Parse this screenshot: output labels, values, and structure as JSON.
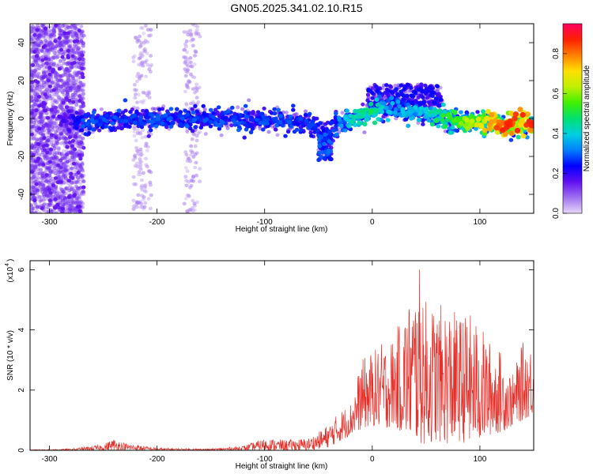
{
  "title": "GN05.2025.341.02.10.R15",
  "chart_data": [
    {
      "type": "heatmap",
      "title": "GN05.2025.341.02.10.R15",
      "xlabel": "Height of straight line (km)",
      "ylabel": "Frequency (Hz)",
      "xlim": [
        -318,
        150
      ],
      "ylim": [
        -50,
        50
      ],
      "x_ticks": [
        -300,
        -200,
        -100,
        0,
        100
      ],
      "y_ticks": [
        -40,
        -20,
        0,
        20,
        40
      ],
      "colorbar": {
        "label": "Normalized spectral amplitude",
        "range": [
          0,
          0.95
        ],
        "ticks": [
          0.0,
          0.2,
          0.4,
          0.6,
          0.8
        ],
        "colormap": [
          "#e6d8f8",
          "#a070f0",
          "#6010f0",
          "#0000ff",
          "#0080ff",
          "#00d0e0",
          "#00e070",
          "#40f000",
          "#c0f000",
          "#ffe000",
          "#ff8000",
          "#ff2000",
          "#ff0060"
        ]
      },
      "ridge_profile": {
        "x": [
          -318,
          -280,
          -270,
          -240,
          -200,
          -150,
          -100,
          -60,
          -45,
          -35,
          -20,
          0,
          10,
          20,
          30,
          45,
          60,
          80,
          100,
          120,
          150
        ],
        "center": [
          -2,
          -2,
          -2,
          -1,
          0,
          0,
          -1,
          -2,
          -8,
          -3,
          0,
          4,
          6,
          5,
          4,
          3,
          1,
          -1,
          -2,
          -3,
          -3
        ],
        "peak_amplitude": [
          0.15,
          0.2,
          0.3,
          0.3,
          0.3,
          0.3,
          0.3,
          0.3,
          0.25,
          0.3,
          0.45,
          0.5,
          0.45,
          0.4,
          0.4,
          0.4,
          0.5,
          0.6,
          0.7,
          0.9,
          0.9
        ]
      }
    },
    {
      "type": "line",
      "xlabel": "Height of straight line (km)",
      "ylabel": "SNR (10 * v/v)",
      "y_multiplier": "(x10",
      "y_multiplier_exp": "4",
      "xlim": [
        -318,
        150
      ],
      "ylim": [
        0,
        6.3
      ],
      "x_ticks": [
        -300,
        -200,
        -100,
        0,
        100
      ],
      "y_ticks": [
        0,
        2,
        4,
        6
      ],
      "color": "#e8302a",
      "envelope": {
        "x": [
          -318,
          -280,
          -250,
          -240,
          -230,
          -200,
          -150,
          -120,
          -100,
          -80,
          -60,
          -50,
          -40,
          -30,
          -20,
          -10,
          0,
          10,
          20,
          30,
          40,
          45,
          50,
          60,
          70,
          80,
          90,
          100,
          110,
          120,
          130,
          140,
          150
        ],
        "max": [
          0.02,
          0.05,
          0.2,
          0.4,
          0.25,
          0.08,
          0.05,
          0.15,
          0.4,
          0.35,
          0.4,
          0.6,
          0.9,
          1.3,
          1.6,
          3.0,
          3.3,
          3.6,
          3.8,
          4.7,
          5.5,
          6.2,
          5.0,
          4.8,
          4.9,
          4.5,
          4.6,
          4.2,
          3.6,
          3.3,
          2.5,
          3.6,
          3.5
        ],
        "min": [
          0,
          0,
          0,
          0,
          0,
          0,
          0,
          0,
          0,
          0,
          0,
          0.05,
          0.1,
          0.3,
          0.5,
          0.7,
          0.8,
          0.7,
          0.8,
          0.5,
          0.3,
          0.2,
          0.2,
          0.3,
          0.2,
          0.3,
          0.2,
          0.3,
          0.5,
          0.6,
          0.8,
          1.0,
          1.2
        ]
      }
    }
  ]
}
